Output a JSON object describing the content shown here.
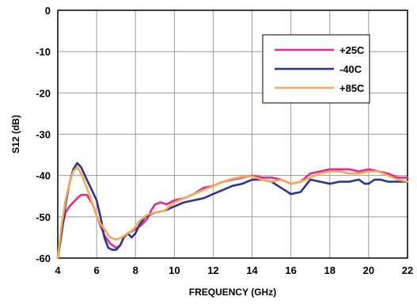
{
  "chart_data": {
    "type": "line",
    "xlabel": "FREQUENCY (GHz)",
    "ylabel": "S12 (dB)",
    "xlim": [
      4,
      22
    ],
    "ylim": [
      -60,
      0
    ],
    "xticks": [
      4,
      6,
      8,
      10,
      12,
      14,
      16,
      18,
      20,
      22
    ],
    "yticks": [
      0,
      -10,
      -20,
      -30,
      -40,
      -50,
      -60
    ],
    "grid": true,
    "legend_position": "top-right",
    "series": [
      {
        "name": "+25C",
        "color": "#e8288c",
        "points": [
          [
            4.0,
            -60.0
          ],
          [
            4.2,
            -53.0
          ],
          [
            4.4,
            -49.0
          ],
          [
            4.6,
            -47.5
          ],
          [
            4.8,
            -46.5
          ],
          [
            5.0,
            -45.5
          ],
          [
            5.2,
            -44.7
          ],
          [
            5.5,
            -44.7
          ],
          [
            5.8,
            -47.0
          ],
          [
            6.1,
            -51.0
          ],
          [
            6.4,
            -54.5
          ],
          [
            6.7,
            -56.5
          ],
          [
            7.0,
            -57.5
          ],
          [
            7.2,
            -57.0
          ],
          [
            7.4,
            -55.0
          ],
          [
            7.6,
            -54.0
          ],
          [
            7.8,
            -53.5
          ],
          [
            8.0,
            -53.0
          ],
          [
            8.3,
            -52.0
          ],
          [
            8.6,
            -50.5
          ],
          [
            8.8,
            -48.5
          ],
          [
            9.0,
            -47.0
          ],
          [
            9.3,
            -46.5
          ],
          [
            9.6,
            -47.0
          ],
          [
            10.0,
            -46.0
          ],
          [
            10.5,
            -45.5
          ],
          [
            11.0,
            -44.5
          ],
          [
            11.5,
            -43.0
          ],
          [
            12.0,
            -42.5
          ],
          [
            12.5,
            -41.5
          ],
          [
            13.0,
            -41.0
          ],
          [
            13.5,
            -40.5
          ],
          [
            14.0,
            -40.0
          ],
          [
            14.5,
            -40.5
          ],
          [
            15.0,
            -40.5
          ],
          [
            15.5,
            -41.0
          ],
          [
            16.0,
            -42.0
          ],
          [
            16.5,
            -41.5
          ],
          [
            17.0,
            -39.5
          ],
          [
            17.5,
            -39.0
          ],
          [
            18.0,
            -38.5
          ],
          [
            18.5,
            -38.5
          ],
          [
            19.0,
            -38.5
          ],
          [
            19.5,
            -39.0
          ],
          [
            20.0,
            -38.5
          ],
          [
            20.5,
            -39.0
          ],
          [
            21.0,
            -39.5
          ],
          [
            21.5,
            -40.5
          ],
          [
            22.0,
            -40.5
          ]
        ]
      },
      {
        "name": "-40C",
        "color": "#2a3590",
        "points": [
          [
            4.0,
            -60.0
          ],
          [
            4.2,
            -54.0
          ],
          [
            4.4,
            -47.0
          ],
          [
            4.6,
            -42.0
          ],
          [
            4.8,
            -38.5
          ],
          [
            5.0,
            -37.0
          ],
          [
            5.2,
            -38.0
          ],
          [
            5.5,
            -41.0
          ],
          [
            5.8,
            -44.0
          ],
          [
            6.0,
            -46.0
          ],
          [
            6.2,
            -50.0
          ],
          [
            6.4,
            -55.0
          ],
          [
            6.6,
            -57.5
          ],
          [
            6.8,
            -58.0
          ],
          [
            7.0,
            -58.0
          ],
          [
            7.2,
            -57.0
          ],
          [
            7.4,
            -55.0
          ],
          [
            7.6,
            -54.0
          ],
          [
            7.8,
            -55.0
          ],
          [
            8.0,
            -54.0
          ],
          [
            8.2,
            -52.0
          ],
          [
            8.5,
            -50.0
          ],
          [
            9.0,
            -49.0
          ],
          [
            9.5,
            -48.5
          ],
          [
            10.0,
            -47.5
          ],
          [
            10.5,
            -46.5
          ],
          [
            11.0,
            -46.0
          ],
          [
            11.5,
            -45.5
          ],
          [
            12.0,
            -44.5
          ],
          [
            12.5,
            -43.5
          ],
          [
            13.0,
            -42.5
          ],
          [
            13.5,
            -42.0
          ],
          [
            14.0,
            -41.0
          ],
          [
            14.5,
            -41.0
          ],
          [
            15.0,
            -41.5
          ],
          [
            15.5,
            -43.0
          ],
          [
            16.0,
            -44.5
          ],
          [
            16.5,
            -44.0
          ],
          [
            17.0,
            -41.0
          ],
          [
            17.5,
            -41.5
          ],
          [
            18.0,
            -42.0
          ],
          [
            18.5,
            -41.5
          ],
          [
            19.0,
            -41.5
          ],
          [
            19.5,
            -41.0
          ],
          [
            19.8,
            -42.0
          ],
          [
            20.0,
            -42.0
          ],
          [
            20.3,
            -41.0
          ],
          [
            20.6,
            -41.0
          ],
          [
            21.0,
            -41.5
          ],
          [
            21.5,
            -41.5
          ],
          [
            22.0,
            -41.5
          ]
        ]
      },
      {
        "name": "+85C",
        "color": "#f5a953",
        "points": [
          [
            4.0,
            -60.0
          ],
          [
            4.2,
            -52.0
          ],
          [
            4.4,
            -46.0
          ],
          [
            4.6,
            -42.0
          ],
          [
            4.8,
            -39.0
          ],
          [
            5.0,
            -38.0
          ],
          [
            5.2,
            -39.5
          ],
          [
            5.5,
            -43.0
          ],
          [
            5.8,
            -47.0
          ],
          [
            6.1,
            -51.0
          ],
          [
            6.4,
            -53.0
          ],
          [
            6.7,
            -55.0
          ],
          [
            7.0,
            -55.5
          ],
          [
            7.3,
            -55.0
          ],
          [
            7.6,
            -54.0
          ],
          [
            7.9,
            -53.0
          ],
          [
            8.2,
            -51.0
          ],
          [
            8.6,
            -49.5
          ],
          [
            9.0,
            -49.0
          ],
          [
            9.5,
            -48.5
          ],
          [
            10.0,
            -46.5
          ],
          [
            10.5,
            -45.5
          ],
          [
            11.0,
            -44.5
          ],
          [
            11.5,
            -43.5
          ],
          [
            12.0,
            -42.5
          ],
          [
            12.5,
            -41.5
          ],
          [
            13.0,
            -40.8
          ],
          [
            13.5,
            -40.3
          ],
          [
            14.0,
            -40.2
          ],
          [
            14.5,
            -41.0
          ],
          [
            15.0,
            -41.5
          ],
          [
            15.5,
            -41.0
          ],
          [
            16.0,
            -42.0
          ],
          [
            16.5,
            -41.5
          ],
          [
            17.0,
            -40.5
          ],
          [
            17.5,
            -39.5
          ],
          [
            18.0,
            -39.0
          ],
          [
            18.5,
            -39.0
          ],
          [
            19.0,
            -39.5
          ],
          [
            19.5,
            -39.5
          ],
          [
            20.0,
            -39.0
          ],
          [
            20.5,
            -39.0
          ],
          [
            21.0,
            -40.0
          ],
          [
            21.5,
            -41.0
          ],
          [
            22.0,
            -41.5
          ]
        ]
      }
    ]
  }
}
